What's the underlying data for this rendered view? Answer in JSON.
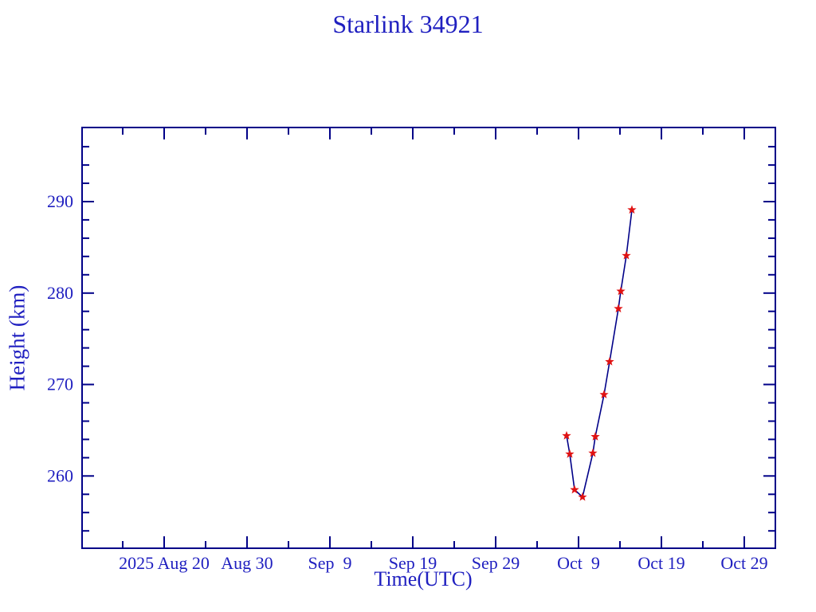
{
  "page": {
    "background": "#ffffff"
  },
  "chart_data": {
    "type": "line",
    "title": "Starlink 34921",
    "xlabel": "Time(UTC)",
    "ylabel": "Height (km)",
    "grid": false,
    "legend": null,
    "x_axis": {
      "unit": "days relative to 2025 Aug 20 00:00 UTC",
      "range": [
        -9.9,
        73.75
      ],
      "major_ticks": [
        {
          "value": 0,
          "label": "2025 Aug 20"
        },
        {
          "value": 10,
          "label": "Aug 30"
        },
        {
          "value": 20,
          "label": "Sep  9"
        },
        {
          "value": 30,
          "label": "Sep 19"
        },
        {
          "value": 40,
          "label": "Sep 29"
        },
        {
          "value": 50,
          "label": "Oct  9"
        },
        {
          "value": 60,
          "label": "Oct 19"
        },
        {
          "value": 70,
          "label": "Oct 29"
        }
      ],
      "minor_ticks": [
        -5,
        5,
        15,
        25,
        35,
        45,
        55,
        65
      ]
    },
    "y_axis": {
      "unit": "km",
      "range": [
        252.1,
        298.1
      ],
      "major_ticks": [
        {
          "value": 260,
          "label": "260"
        },
        {
          "value": 270,
          "label": "270"
        },
        {
          "value": 280,
          "label": "280"
        },
        {
          "value": 290,
          "label": "290"
        }
      ],
      "minor_ticks": [
        254,
        256,
        258,
        262,
        264,
        266,
        268,
        272,
        274,
        276,
        278,
        282,
        284,
        286,
        288,
        292,
        294,
        296
      ]
    },
    "series": [
      {
        "name": "Height (km)",
        "marker": "red-star",
        "points": [
          {
            "date": "2025 Oct 7.6",
            "t": 48.56,
            "height_km": 264.4
          },
          {
            "date": "2025 Oct 7.9",
            "t": 48.94,
            "height_km": 262.4
          },
          {
            "date": "2025 Oct 8.5",
            "t": 49.52,
            "height_km": 258.5
          },
          {
            "date": "2025 Oct 9.5",
            "t": 50.48,
            "height_km": 257.7
          },
          {
            "date": "2025 Oct 10.7",
            "t": 51.73,
            "height_km": 262.5
          },
          {
            "date": "2025 Oct 11.0",
            "t": 52.02,
            "height_km": 264.3
          },
          {
            "date": "2025 Oct 12.1",
            "t": 53.08,
            "height_km": 268.9
          },
          {
            "date": "2025 Oct 12.8",
            "t": 53.75,
            "height_km": 272.5
          },
          {
            "date": "2025 Oct 13.8",
            "t": 54.81,
            "height_km": 278.3
          },
          {
            "date": "2025 Oct 14.1",
            "t": 55.1,
            "height_km": 280.2
          },
          {
            "date": "2025 Oct 14.8",
            "t": 55.77,
            "height_km": 284.1
          },
          {
            "date": "2025 Oct 15.4",
            "t": 56.44,
            "height_km": 289.1
          }
        ]
      }
    ],
    "colors": {
      "text": "#2020c0",
      "frame": "#000088",
      "line": "#000088",
      "marker": "#e01212"
    }
  }
}
